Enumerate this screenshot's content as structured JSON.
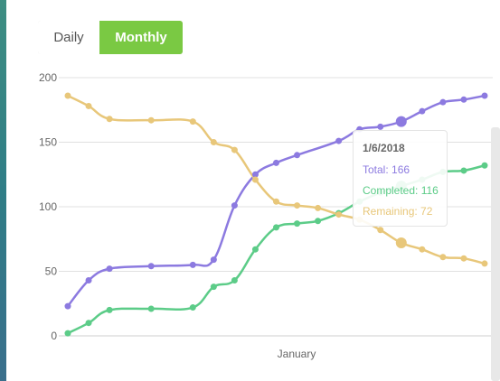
{
  "toggle": {
    "daily_label": "Daily",
    "monthly_label": "Monthly",
    "selected": "Monthly"
  },
  "colors": {
    "total": "#8c7ae0",
    "completed": "#5ccc88",
    "remaining": "#e8c77a",
    "accent": "#7ac943"
  },
  "tooltip": {
    "title": "1/6/2018",
    "total": "Total: 166",
    "completed": "Completed: 116",
    "remaining": "Remaining: 72"
  },
  "chart_data": {
    "type": "line",
    "xlabel": "January",
    "ylabel": "",
    "ylim": [
      0,
      200
    ],
    "yticks": [
      0,
      50,
      100,
      150,
      200
    ],
    "grid": true,
    "point_count": 21,
    "highlight_index": 16,
    "series": [
      {
        "name": "Total",
        "color": "#8c7ae0",
        "values": [
          23,
          43,
          52,
          null,
          54,
          null,
          55,
          59,
          101,
          125,
          134,
          140,
          null,
          151,
          160,
          162,
          166,
          174,
          181,
          183,
          186
        ]
      },
      {
        "name": "Completed",
        "color": "#5ccc88",
        "values": [
          2,
          10,
          20,
          null,
          21,
          null,
          22,
          38,
          43,
          67,
          84,
          87,
          89,
          95,
          104,
          111,
          116,
          121,
          127,
          128,
          132
        ]
      },
      {
        "name": "Remaining",
        "color": "#e8c77a",
        "values": [
          186,
          178,
          168,
          null,
          167,
          null,
          166,
          150,
          144,
          121,
          104,
          101,
          99,
          94,
          90,
          82,
          72,
          67,
          61,
          60,
          56
        ]
      }
    ]
  }
}
